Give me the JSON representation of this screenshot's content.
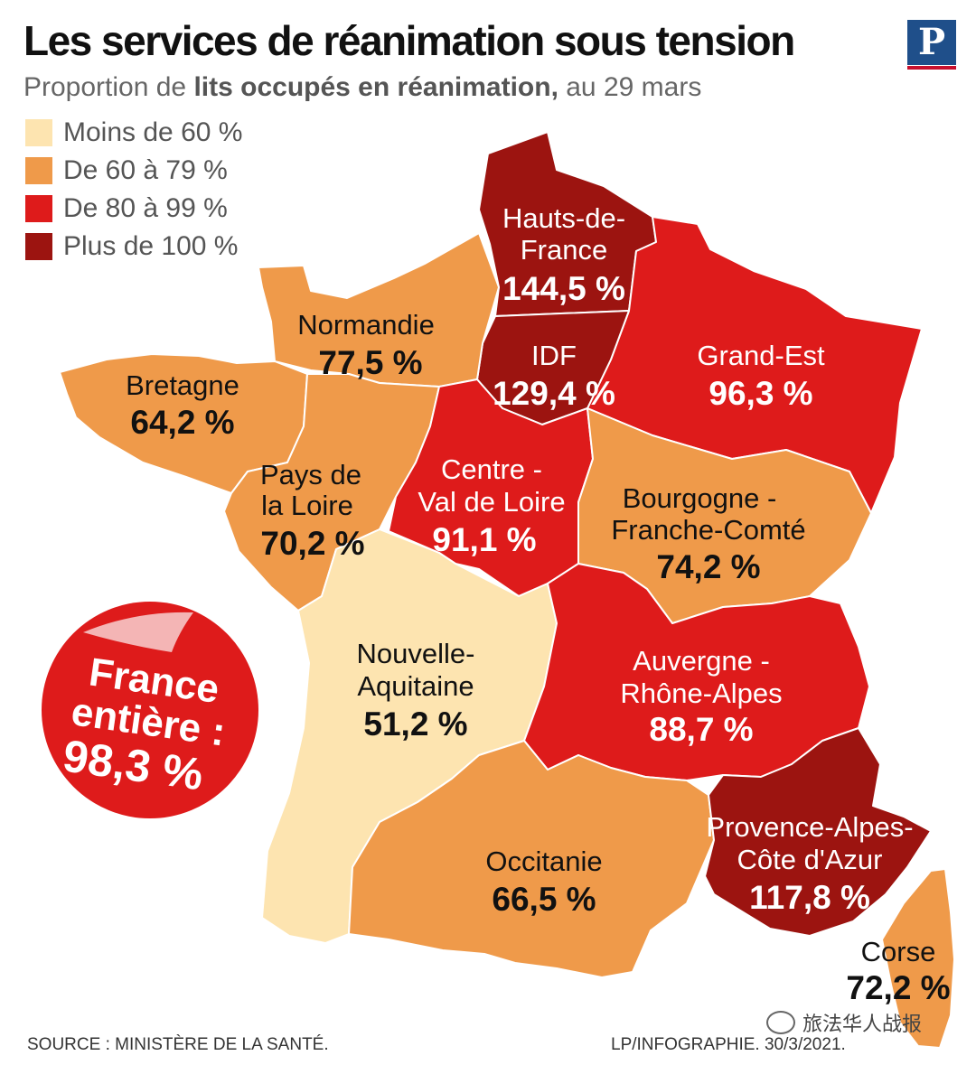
{
  "header": {
    "title": "Les services de réanimation sous tension",
    "subtitle_prefix": "Proportion de ",
    "subtitle_bold": "lits occupés en réanimation,",
    "subtitle_suffix": " au 29 mars",
    "logo_letter": "P"
  },
  "legend": {
    "items": [
      {
        "label": "Moins de 60 %",
        "color": "#fde4b0"
      },
      {
        "label": "De 60 à 79 %",
        "color": "#ef9a4a"
      },
      {
        "label": "De 80 à 99 %",
        "color": "#de1b1b"
      },
      {
        "label": "Plus de 100 %",
        "color": "#9c1410"
      }
    ]
  },
  "regions": {
    "hauts_de_france": {
      "name_line1": "Hauts-de-",
      "name_line2": "France",
      "value": "144,5 %",
      "color": "#9c1410"
    },
    "idf": {
      "name": "IDF",
      "value": "129,4 %",
      "color": "#9c1410"
    },
    "grand_est": {
      "name": "Grand-Est",
      "value": "96,3 %",
      "color": "#de1b1b"
    },
    "normandie": {
      "name": "Normandie",
      "value": "77,5 %",
      "color": "#ef9a4a"
    },
    "bretagne": {
      "name": "Bretagne",
      "value": "64,2 %",
      "color": "#ef9a4a"
    },
    "pays_de_la_loire": {
      "name_line1": "Pays de",
      "name_line2": "la Loire",
      "value": "70,2 %",
      "color": "#ef9a4a"
    },
    "centre_val_de_loire": {
      "name_line1": "Centre -",
      "name_line2": "Val de Loire",
      "value": "91,1 %",
      "color": "#de1b1b"
    },
    "bourgogne_franche_comte": {
      "name_line1": "Bourgogne -",
      "name_line2": "Franche-Comté",
      "value": "74,2 %",
      "color": "#ef9a4a"
    },
    "nouvelle_aquitaine": {
      "name_line1": "Nouvelle-",
      "name_line2": "Aquitaine",
      "value": "51,2 %",
      "color": "#fde4b0"
    },
    "auvergne_rhone_alpes": {
      "name_line1": "Auvergne -",
      "name_line2": "Rhône-Alpes",
      "value": "88,7 %",
      "color": "#de1b1b"
    },
    "occitanie": {
      "name": "Occitanie",
      "value": "66,5 %",
      "color": "#ef9a4a"
    },
    "paca": {
      "name_line1": "Provence-Alpes-",
      "name_line2": "Côte d'Azur",
      "value": "117,8 %",
      "color": "#9c1410"
    },
    "corse": {
      "name": "Corse",
      "value": "72,2 %",
      "color": "#ef9a4a"
    }
  },
  "national": {
    "line1": "France",
    "line2": "entière :",
    "line3": "98,3 %",
    "color": "#de1b1b"
  },
  "footer": {
    "source": "SOURCE : MINISTÈRE DE LA SANTÉ.",
    "credit": "LP/INFOGRAPHIE.  30/3/2021.",
    "wechat": "旅法华人战报"
  }
}
